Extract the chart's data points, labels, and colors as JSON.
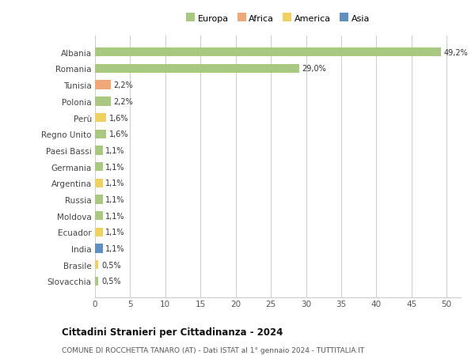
{
  "countries": [
    "Albania",
    "Romania",
    "Tunisia",
    "Polonia",
    "Perù",
    "Regno Unito",
    "Paesi Bassi",
    "Germania",
    "Argentina",
    "Russia",
    "Moldova",
    "Ecuador",
    "India",
    "Brasile",
    "Slovacchia"
  ],
  "values": [
    49.2,
    29.0,
    2.2,
    2.2,
    1.6,
    1.6,
    1.1,
    1.1,
    1.1,
    1.1,
    1.1,
    1.1,
    1.1,
    0.5,
    0.5
  ],
  "labels": [
    "49,2%",
    "29,0%",
    "2,2%",
    "2,2%",
    "1,6%",
    "1,6%",
    "1,1%",
    "1,1%",
    "1,1%",
    "1,1%",
    "1,1%",
    "1,1%",
    "1,1%",
    "0,5%",
    "0,5%"
  ],
  "continents": [
    "Europa",
    "Europa",
    "Africa",
    "Europa",
    "America",
    "Europa",
    "Europa",
    "Europa",
    "America",
    "Europa",
    "Europa",
    "America",
    "Asia",
    "America",
    "Europa"
  ],
  "continent_colors": {
    "Europa": "#a8c97f",
    "Africa": "#f0a878",
    "America": "#f0d060",
    "Asia": "#6090c0"
  },
  "legend_items": [
    "Europa",
    "Africa",
    "America",
    "Asia"
  ],
  "legend_colors": [
    "#a8c97f",
    "#f0a878",
    "#f0d060",
    "#6090c0"
  ],
  "xlim": [
    0,
    52
  ],
  "xticks": [
    0,
    5,
    10,
    15,
    20,
    25,
    30,
    35,
    40,
    45,
    50
  ],
  "title": "Cittadini Stranieri per Cittadinanza - 2024",
  "subtitle": "COMUNE DI ROCCHETTA TANARO (AT) - Dati ISTAT al 1° gennaio 2024 - TUTTITALIA.IT",
  "bg_color": "#ffffff",
  "grid_color": "#cccccc",
  "bar_height": 0.55
}
